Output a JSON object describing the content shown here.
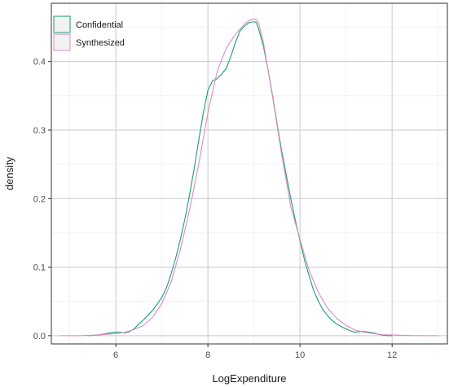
{
  "chart_data": {
    "type": "line",
    "xlabel": "LogExpenditure",
    "ylabel": "density",
    "xlim": [
      4.6,
      13.2
    ],
    "ylim": [
      -0.012,
      0.485
    ],
    "xticks": [
      6,
      8,
      10,
      12
    ],
    "yticks": [
      0.0,
      0.1,
      0.2,
      0.3,
      0.4
    ],
    "ytick_labels": [
      "0.0",
      "0.1",
      "0.2",
      "0.3",
      "0.4"
    ],
    "grid": true,
    "legend_position": "top-left",
    "series": [
      {
        "name": "Confidential",
        "color": "#1a9e77",
        "x": [
          5.4,
          5.6,
          5.8,
          5.95,
          6.1,
          6.2,
          6.3,
          6.4,
          6.5,
          6.6,
          6.7,
          6.8,
          6.9,
          7.0,
          7.1,
          7.2,
          7.3,
          7.4,
          7.5,
          7.6,
          7.7,
          7.8,
          7.9,
          8.0,
          8.1,
          8.2,
          8.3,
          8.4,
          8.5,
          8.6,
          8.7,
          8.8,
          8.9,
          9.0,
          9.05,
          9.1,
          9.2,
          9.3,
          9.4,
          9.5,
          9.6,
          9.7,
          9.8,
          9.9,
          10.0,
          10.1,
          10.2,
          10.3,
          10.4,
          10.5,
          10.6,
          10.7,
          10.8,
          10.9,
          11.0,
          11.1,
          11.2,
          11.3,
          11.4,
          11.5,
          11.6,
          11.7,
          11.8,
          11.9,
          12.0
        ],
        "y": [
          0.0,
          0.001,
          0.003,
          0.005,
          0.005,
          0.004,
          0.006,
          0.01,
          0.017,
          0.023,
          0.03,
          0.037,
          0.046,
          0.056,
          0.07,
          0.09,
          0.113,
          0.14,
          0.17,
          0.205,
          0.243,
          0.285,
          0.325,
          0.358,
          0.372,
          0.375,
          0.382,
          0.39,
          0.408,
          0.428,
          0.445,
          0.452,
          0.457,
          0.458,
          0.457,
          0.448,
          0.424,
          0.39,
          0.352,
          0.31,
          0.27,
          0.235,
          0.2,
          0.168,
          0.138,
          0.11,
          0.087,
          0.065,
          0.05,
          0.038,
          0.029,
          0.022,
          0.017,
          0.013,
          0.01,
          0.007,
          0.005,
          0.006,
          0.006,
          0.005,
          0.004,
          0.002,
          0.001,
          0.0,
          0.0
        ]
      },
      {
        "name": "Synthesized",
        "color": "#d98cc4",
        "x": [
          4.8,
          5.2,
          5.6,
          5.8,
          6.0,
          6.2,
          6.4,
          6.6,
          6.8,
          7.0,
          7.2,
          7.4,
          7.6,
          7.8,
          8.0,
          8.2,
          8.4,
          8.6,
          8.8,
          8.9,
          9.0,
          9.05,
          9.1,
          9.2,
          9.4,
          9.6,
          9.8,
          10.0,
          10.2,
          10.4,
          10.6,
          10.8,
          11.0,
          11.2,
          11.4,
          11.6,
          11.8,
          12.0,
          12.4,
          12.8,
          13.0
        ],
        "y": [
          0.0,
          0.0,
          0.001,
          0.002,
          0.003,
          0.005,
          0.009,
          0.015,
          0.027,
          0.047,
          0.078,
          0.125,
          0.183,
          0.25,
          0.325,
          0.385,
          0.42,
          0.44,
          0.455,
          0.46,
          0.462,
          0.461,
          0.456,
          0.43,
          0.35,
          0.265,
          0.188,
          0.14,
          0.095,
          0.063,
          0.04,
          0.025,
          0.015,
          0.008,
          0.005,
          0.003,
          0.0015,
          0.001,
          0.0002,
          0.0,
          0.0
        ]
      }
    ]
  }
}
